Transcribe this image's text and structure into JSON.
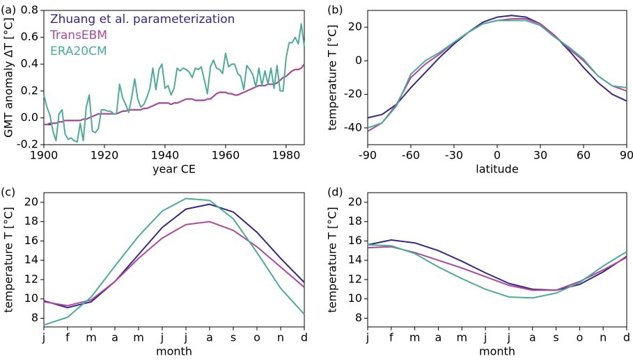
{
  "chart_data": [
    {
      "type": "line",
      "label": "(a)",
      "xlabel": "year CE",
      "ylabel": "GMT anomaly ΔT [°C]",
      "x": [
        1900,
        1901,
        1902,
        1903,
        1904,
        1905,
        1906,
        1907,
        1908,
        1909,
        1910,
        1911,
        1912,
        1913,
        1914,
        1915,
        1916,
        1917,
        1918,
        1919,
        1920,
        1921,
        1922,
        1923,
        1924,
        1925,
        1926,
        1927,
        1928,
        1929,
        1930,
        1931,
        1932,
        1933,
        1934,
        1935,
        1936,
        1937,
        1938,
        1939,
        1940,
        1941,
        1942,
        1943,
        1944,
        1945,
        1946,
        1947,
        1948,
        1949,
        1950,
        1951,
        1952,
        1953,
        1954,
        1955,
        1956,
        1957,
        1958,
        1959,
        1960,
        1961,
        1962,
        1963,
        1964,
        1965,
        1966,
        1967,
        1968,
        1969,
        1970,
        1971,
        1972,
        1973,
        1974,
        1975,
        1976,
        1977,
        1978,
        1979,
        1980,
        1981,
        1982,
        1983,
        1984,
        1985,
        1986
      ],
      "series": [
        {
          "name": "Zhuang et al. parameterization",
          "color": "#35268a",
          "values": [
            -0.05,
            -0.05,
            -0.05,
            -0.04,
            -0.04,
            -0.03,
            -0.03,
            -0.02,
            -0.02,
            -0.02,
            -0.02,
            -0.02,
            -0.02,
            -0.01,
            -0.01,
            0.0,
            0.01,
            0.02,
            0.03,
            0.03,
            0.03,
            0.03,
            0.03,
            0.03,
            0.03,
            0.04,
            0.05,
            0.05,
            0.06,
            0.06,
            0.06,
            0.06,
            0.06,
            0.07,
            0.07,
            0.08,
            0.09,
            0.1,
            0.11,
            0.11,
            0.11,
            0.11,
            0.1,
            0.11,
            0.11,
            0.12,
            0.13,
            0.14,
            0.14,
            0.14,
            0.13,
            0.13,
            0.13,
            0.13,
            0.14,
            0.14,
            0.16,
            0.18,
            0.19,
            0.19,
            0.19,
            0.18,
            0.18,
            0.17,
            0.17,
            0.18,
            0.19,
            0.2,
            0.21,
            0.22,
            0.23,
            0.24,
            0.24,
            0.24,
            0.25,
            0.25,
            0.25,
            0.26,
            0.28,
            0.3,
            0.31,
            0.33,
            0.35,
            0.36,
            0.36,
            0.37,
            0.4
          ]
        },
        {
          "name": "TransEBM",
          "color": "#b0479a",
          "values": [
            -0.05,
            -0.05,
            -0.04,
            -0.04,
            -0.04,
            -0.03,
            -0.03,
            -0.02,
            -0.02,
            -0.02,
            -0.02,
            -0.02,
            -0.02,
            -0.01,
            -0.01,
            0.0,
            0.01,
            0.02,
            0.03,
            0.03,
            0.03,
            0.03,
            0.03,
            0.03,
            0.03,
            0.04,
            0.05,
            0.05,
            0.06,
            0.06,
            0.06,
            0.06,
            0.06,
            0.07,
            0.07,
            0.08,
            0.09,
            0.1,
            0.11,
            0.11,
            0.11,
            0.11,
            0.1,
            0.11,
            0.11,
            0.12,
            0.13,
            0.14,
            0.14,
            0.14,
            0.13,
            0.13,
            0.13,
            0.13,
            0.14,
            0.14,
            0.16,
            0.18,
            0.19,
            0.19,
            0.19,
            0.18,
            0.18,
            0.17,
            0.17,
            0.18,
            0.19,
            0.2,
            0.21,
            0.22,
            0.23,
            0.24,
            0.24,
            0.24,
            0.25,
            0.25,
            0.25,
            0.26,
            0.28,
            0.3,
            0.31,
            0.33,
            0.35,
            0.36,
            0.36,
            0.37,
            0.4
          ]
        },
        {
          "name": "ERA20CM",
          "color": "#4aac98",
          "values": [
            0.17,
            0.08,
            0.02,
            -0.1,
            -0.17,
            0.03,
            0.06,
            -0.12,
            -0.16,
            -0.15,
            -0.17,
            -0.18,
            -0.04,
            -0.17,
            0.08,
            0.17,
            -0.1,
            -0.11,
            -0.08,
            0.06,
            0.06,
            0.05,
            0.05,
            0.03,
            0.03,
            0.25,
            0.15,
            0.1,
            0.04,
            0.15,
            0.29,
            0.14,
            0.08,
            0.1,
            0.15,
            0.22,
            0.37,
            0.21,
            0.36,
            0.4,
            0.22,
            0.24,
            0.17,
            0.22,
            0.37,
            0.35,
            0.37,
            0.36,
            0.34,
            0.3,
            0.37,
            0.36,
            0.38,
            0.28,
            0.18,
            0.38,
            0.43,
            0.37,
            0.36,
            0.33,
            0.48,
            0.38,
            0.4,
            0.4,
            0.33,
            0.31,
            0.21,
            0.39,
            0.36,
            0.32,
            0.23,
            0.37,
            0.24,
            0.35,
            0.25,
            0.37,
            0.22,
            0.39,
            0.2,
            0.2,
            0.45,
            0.56,
            0.56,
            0.6,
            0.55,
            0.7,
            0.53
          ]
        }
      ],
      "xlim": [
        1900,
        1986
      ],
      "xticks": [
        1900,
        1920,
        1940,
        1960,
        1980
      ],
      "ylim": [
        -0.2,
        0.8
      ],
      "yticks": [
        -0.2,
        {
          "value": 0,
          "label": "0.0"
        },
        0.2,
        0.4,
        0.6,
        0.8
      ],
      "legend": "upper left"
    },
    {
      "type": "line",
      "label": "(b)",
      "xlabel": "latitude",
      "ylabel": "temperature T [°C]",
      "x": [
        -90,
        -80,
        -70,
        -60,
        -50,
        -40,
        -30,
        -20,
        -10,
        0,
        10,
        20,
        30,
        40,
        50,
        60,
        70,
        80,
        90
      ],
      "series": [
        {
          "color": "#35268a",
          "values": [
            -34,
            -32,
            -26,
            -16,
            -7,
            2,
            10,
            17,
            23,
            26,
            27,
            26,
            22,
            15,
            6,
            -4,
            -13,
            -20,
            -24
          ]
        },
        {
          "color": "#b0479a",
          "values": [
            -42,
            -37,
            -26,
            -10,
            -2,
            4,
            11,
            17,
            22,
            24,
            25,
            25,
            22,
            15,
            7,
            0,
            -9,
            -15,
            -18
          ]
        },
        {
          "color": "#4aac98",
          "values": [
            -40,
            -37,
            -27,
            -8,
            0,
            5,
            11,
            17,
            22,
            24,
            24,
            24,
            21,
            14,
            8,
            1,
            -9,
            -15,
            -16
          ]
        }
      ],
      "xlim": [
        -90,
        90
      ],
      "xticks": [
        -90,
        -60,
        -30,
        0,
        30,
        60,
        90
      ],
      "ylim": [
        -50,
        30
      ],
      "yticks": [
        -40,
        -20,
        0,
        20
      ]
    },
    {
      "type": "line",
      "label": "(c)",
      "xlabel": "month",
      "ylabel": "temperature T [°C]",
      "categories": [
        "j",
        "f",
        "m",
        "a",
        "m",
        "j",
        "j",
        "a",
        "s",
        "o",
        "n",
        "d"
      ],
      "series": [
        {
          "color": "#35268a",
          "values": [
            9.8,
            9.1,
            9.7,
            11.8,
            14.6,
            17.4,
            19.3,
            19.8,
            19.0,
            16.9,
            14.2,
            11.7
          ]
        },
        {
          "color": "#b0479a",
          "values": [
            9.7,
            9.3,
            9.9,
            11.8,
            14.2,
            16.3,
            17.7,
            18.0,
            17.1,
            15.4,
            13.3,
            11.2
          ]
        },
        {
          "color": "#4aac98",
          "values": [
            7.3,
            8.1,
            10.2,
            13.4,
            16.5,
            19.1,
            20.4,
            20.2,
            18.3,
            14.8,
            11.1,
            8.4
          ]
        }
      ],
      "ylim": [
        7.1,
        21
      ],
      "yticks": [
        8,
        10,
        12,
        14,
        16,
        18,
        20
      ]
    },
    {
      "type": "line",
      "label": "(d)",
      "xlabel": "month",
      "ylabel": "temperature T [°C]",
      "categories": [
        "j",
        "f",
        "m",
        "a",
        "m",
        "j",
        "j",
        "a",
        "s",
        "o",
        "n",
        "d"
      ],
      "series": [
        {
          "color": "#35268a",
          "values": [
            15.6,
            16.1,
            15.8,
            15.0,
            13.9,
            12.7,
            11.6,
            11.0,
            10.9,
            11.5,
            12.8,
            14.4
          ]
        },
        {
          "color": "#b0479a",
          "values": [
            15.3,
            15.4,
            14.8,
            14.0,
            13.2,
            12.3,
            11.4,
            10.9,
            10.9,
            11.8,
            13.0,
            14.3
          ]
        },
        {
          "color": "#4aac98",
          "values": [
            15.6,
            15.5,
            14.7,
            13.3,
            12.1,
            11.0,
            10.2,
            10.1,
            10.6,
            11.7,
            13.4,
            14.9
          ]
        }
      ],
      "ylim": [
        7.1,
        21
      ],
      "yticks": [
        8,
        10,
        12,
        14,
        16,
        18,
        20
      ]
    }
  ]
}
